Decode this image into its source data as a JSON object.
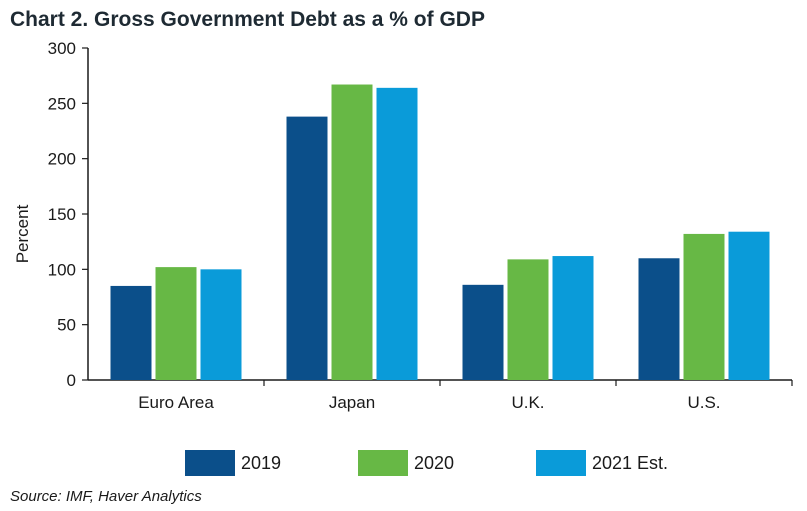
{
  "title": "Chart 2. Gross Government Debt as a % of GDP",
  "source": "Source: IMF, Haver Analytics",
  "colors": {
    "2019": "#0b4f8a",
    "2020": "#67b845",
    "2021 Est.": "#0a9bd9",
    "axis": "#1a1a1a"
  },
  "chart_data": {
    "type": "bar",
    "title": "Chart 2. Gross Government Debt as a % of GDP",
    "xlabel": "",
    "ylabel": "Percent",
    "ylim": [
      0,
      300
    ],
    "yticks": [
      0,
      50,
      100,
      150,
      200,
      250,
      300
    ],
    "categories": [
      "Euro Area",
      "Japan",
      "U.K.",
      "U.S."
    ],
    "series": [
      {
        "name": "2019",
        "values": [
          85,
          238,
          86,
          110
        ]
      },
      {
        "name": "2020",
        "values": [
          102,
          267,
          109,
          132
        ]
      },
      {
        "name": "2021 Est.",
        "values": [
          100,
          264,
          112,
          134
        ]
      }
    ],
    "legend_position": "bottom",
    "grid": false
  }
}
